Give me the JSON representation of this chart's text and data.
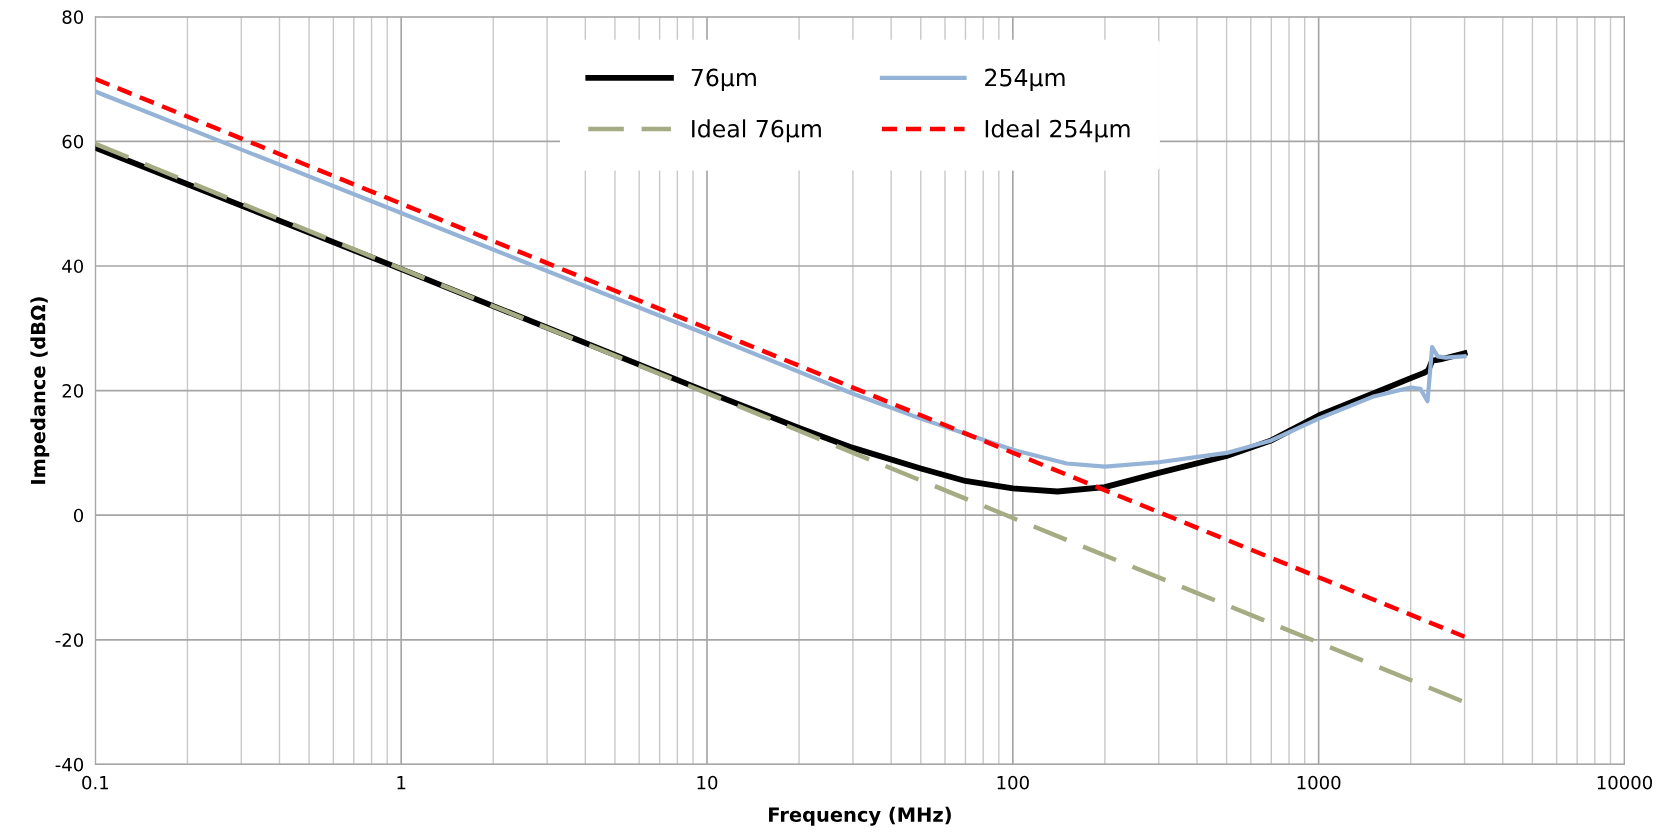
{
  "chart_data": {
    "type": "line",
    "xlabel": "Frequency (MHz)",
    "ylabel": "Impedance (dBΩ)",
    "log": "x",
    "xlim": [
      0.1,
      10000
    ],
    "xticks": [
      0.1,
      1,
      10,
      100,
      1000,
      10000
    ],
    "ylim": [
      -40,
      80
    ],
    "yticks": [
      -40,
      -20,
      0,
      20,
      40,
      60,
      80
    ],
    "grid": true,
    "legend": "top",
    "marker": "none",
    "series": [
      {
        "name": "76µm",
        "color": "#000000",
        "line_style": "solid",
        "x": [
          0.1,
          1,
          10,
          20,
          30,
          50,
          70,
          100,
          140,
          200,
          300,
          500,
          700,
          1000,
          1500,
          2000,
          2200,
          2280,
          2350,
          2500,
          3000
        ],
        "values": [
          59,
          39.5,
          19.8,
          14,
          10.8,
          7.5,
          5.5,
          4.3,
          3.8,
          4.5,
          6.8,
          9.5,
          12,
          16,
          19.5,
          22,
          22.8,
          23.2,
          24.8,
          25,
          26
        ]
      },
      {
        "name": "254µm",
        "color": "#95b3d7",
        "line_style": "solid",
        "x": [
          0.1,
          1,
          10,
          30,
          50,
          100,
          150,
          200,
          300,
          500,
          700,
          1000,
          1500,
          2000,
          2150,
          2270,
          2350,
          2450,
          2600,
          3000
        ],
        "values": [
          68,
          48.5,
          29,
          19.5,
          15.5,
          10.5,
          8.3,
          7.8,
          8.5,
          10,
          12,
          15.5,
          19,
          20.5,
          20.3,
          18.3,
          27,
          25.5,
          25.3,
          25.5
        ]
      },
      {
        "name": "Ideal 76µm",
        "color": "#a5ab82",
        "line_style": "dashed",
        "x": [
          0.1,
          3000
        ],
        "values": [
          59.6,
          -30
        ]
      },
      {
        "name": "Ideal 254µm",
        "color": "#ff0000",
        "line_style": "dotted",
        "x": [
          0.1,
          3000
        ],
        "values": [
          70,
          -19.5
        ]
      }
    ]
  }
}
